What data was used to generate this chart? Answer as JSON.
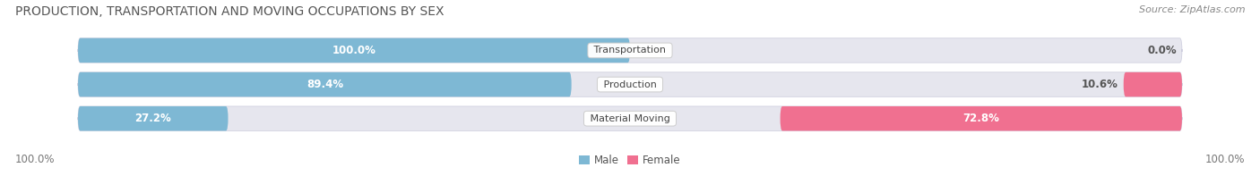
{
  "title": "PRODUCTION, TRANSPORTATION AND MOVING OCCUPATIONS BY SEX",
  "source": "Source: ZipAtlas.com",
  "categories": [
    "Transportation",
    "Production",
    "Material Moving"
  ],
  "male_values": [
    100.0,
    89.4,
    27.2
  ],
  "female_values": [
    0.0,
    10.6,
    72.8
  ],
  "male_color": "#7eb8d4",
  "female_color": "#f07090",
  "male_color_light": "#aed0e8",
  "female_color_light": "#f4a0b8",
  "male_label": "Male",
  "female_label": "Female",
  "bar_bg_color": "#e6e6ee",
  "title_fontsize": 10,
  "source_fontsize": 8,
  "label_fontsize": 8.5,
  "category_fontsize": 8,
  "axis_label_left": "100.0%",
  "axis_label_right": "100.0%"
}
